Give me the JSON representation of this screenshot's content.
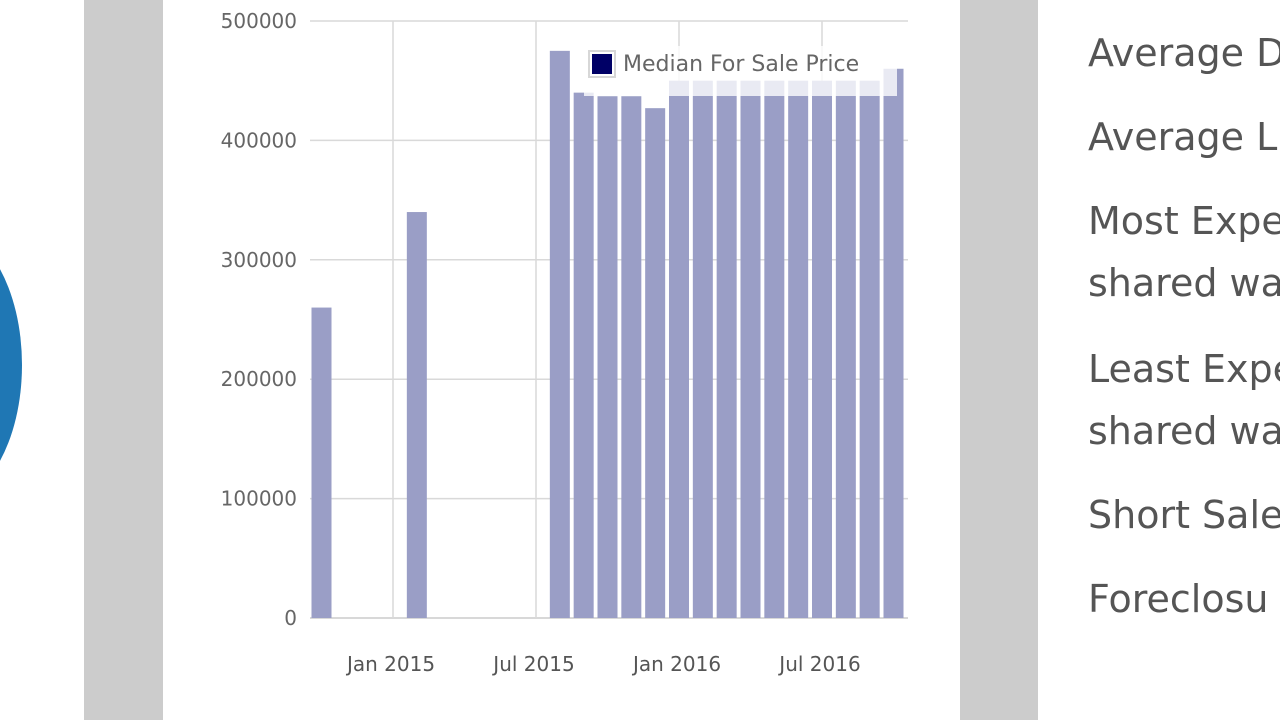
{
  "chart_data": {
    "type": "bar",
    "title": "",
    "xlabel": "",
    "ylabel": "",
    "ylim": [
      0,
      500000
    ],
    "yticks": [
      0,
      100000,
      200000,
      300000,
      400000,
      500000
    ],
    "ytick_labels": [
      "0",
      "100000",
      "200000",
      "300000",
      "400000",
      "500000"
    ],
    "xtick_labels": [
      "Jan 2015",
      "Jul 2015",
      "Jan 2016",
      "Jul 2016"
    ],
    "grid": true,
    "legend_position": "top-right inside",
    "series": [
      {
        "name": "Median For Sale Price",
        "color": "#000066",
        "bar_color": "#9a9ec6",
        "points": [
          {
            "x": "Oct 2014",
            "y": 260000
          },
          {
            "x": "Feb 2015",
            "y": 340000
          },
          {
            "x": "Aug 2015",
            "y": 475000
          },
          {
            "x": "Sep 2015",
            "y": 440000
          },
          {
            "x": "Oct 2015",
            "y": 437000
          },
          {
            "x": "Nov 2015",
            "y": 437000
          },
          {
            "x": "Dec 2015",
            "y": 427000
          },
          {
            "x": "Jan 2016",
            "y": 450000
          },
          {
            "x": "Feb 2016",
            "y": 450000
          },
          {
            "x": "Mar 2016",
            "y": 450000
          },
          {
            "x": "Apr 2016",
            "y": 450000
          },
          {
            "x": "May 2016",
            "y": 450000
          },
          {
            "x": "Jun 2016",
            "y": 450000
          },
          {
            "x": "Jul 2016",
            "y": 450000
          },
          {
            "x": "Aug 2016",
            "y": 450000
          },
          {
            "x": "Sep 2016",
            "y": 450000
          },
          {
            "x": "Oct 2016",
            "y": 460000
          }
        ]
      }
    ]
  },
  "legend": {
    "label": "Median For Sale Price",
    "swatch_color": "#000066"
  },
  "stats": {
    "items": [
      {
        "text": "Average D"
      },
      {
        "text": "Average L"
      },
      {
        "text": "Most Expe"
      },
      {
        "text": "shared wa"
      },
      {
        "text": "Least Expe"
      },
      {
        "text": "shared wa"
      },
      {
        "text": "Short Sale"
      },
      {
        "text": "Foreclosu"
      }
    ]
  },
  "colors": {
    "accent_circle": "#1f77b4",
    "side_band": "#cccccc",
    "bar": "#9a9ec6"
  }
}
